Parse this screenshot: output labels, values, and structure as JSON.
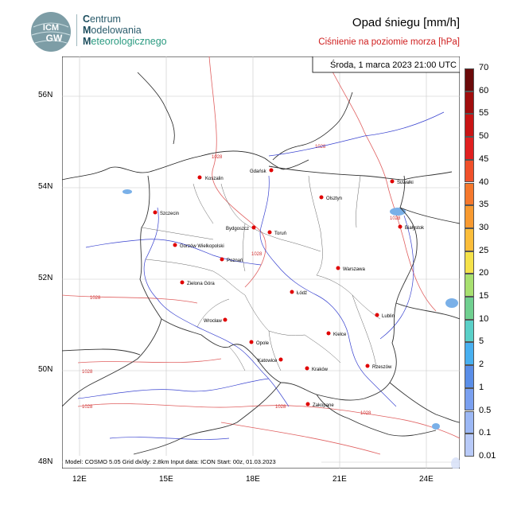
{
  "header": {
    "org_line1_cap": "C",
    "org_line1": "entrum",
    "org_line2_cap": "M",
    "org_line2": "odelowania",
    "org_line3_cap": "M",
    "org_line3": "eteorologicznego",
    "logo_top": "ICM",
    "logo_bottom": "GW",
    "title": "Opad śniegu [mm/h]",
    "subtitle": "Ciśnienie na poziomie morza [hPa]"
  },
  "map": {
    "timestamp": "Środa, 1 marca 2023 21:00 UTC",
    "footer": "Model: COSMO 5.05  Grid dx/dy: 2.8km  Input data: ICON  Start: 00z, 01.03.2023",
    "lat_labels": [
      "56N",
      "54N",
      "52N",
      "50N",
      "48N"
    ],
    "lon_labels": [
      "12E",
      "15E",
      "18E",
      "21E",
      "24E"
    ],
    "isobar_label": "1028",
    "cities": [
      {
        "name": "Gdańsk"
      },
      {
        "name": "Koszalin"
      },
      {
        "name": "Suwałki"
      },
      {
        "name": "Olsztyn"
      },
      {
        "name": "Szczecin"
      },
      {
        "name": "Bydgoszcz"
      },
      {
        "name": "Toruń"
      },
      {
        "name": "Białystok"
      },
      {
        "name": "Gorzów Wielkopolski"
      },
      {
        "name": "Poznań"
      },
      {
        "name": "Warszawa"
      },
      {
        "name": "Zielona Góra"
      },
      {
        "name": "Łódź"
      },
      {
        "name": "Wrocław"
      },
      {
        "name": "Lublin"
      },
      {
        "name": "Opole"
      },
      {
        "name": "Kielce"
      },
      {
        "name": "Katowice"
      },
      {
        "name": "Kraków"
      },
      {
        "name": "Rzeszów"
      },
      {
        "name": "Zakopane"
      }
    ]
  },
  "legend": {
    "labels": [
      "70",
      "60",
      "55",
      "50",
      "45",
      "40",
      "35",
      "30",
      "25",
      "20",
      "15",
      "10",
      "5",
      "2",
      "1",
      "0.5",
      "0.1",
      "0.01"
    ],
    "colors": [
      "#6b0a0a",
      "#a00d0d",
      "#c81414",
      "#e02020",
      "#f0502a",
      "#f5782d",
      "#f89a30",
      "#fbbd3a",
      "#f5e24a",
      "#a8e070",
      "#70d090",
      "#5ad0c8",
      "#48b0f0",
      "#5a8ee8",
      "#7aa0f0",
      "#9cb8f5",
      "#b8caf8",
      "#d4def8"
    ]
  }
}
